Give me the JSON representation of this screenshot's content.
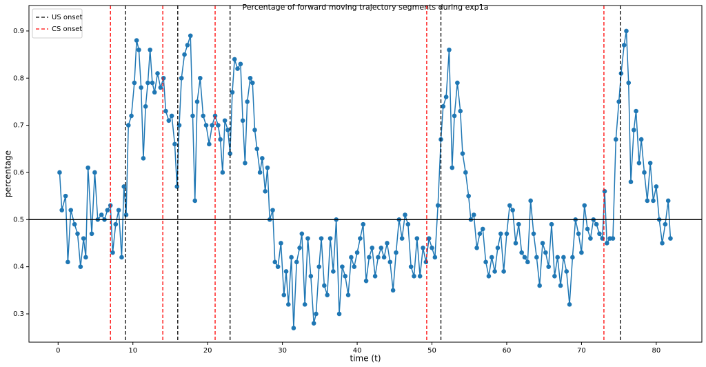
{
  "chart_data": {
    "type": "line",
    "title": "Percentage of forward moving trajectory segments during exp1a",
    "x_label": "time (t)",
    "y_label": "percentage",
    "x": [
      0.2,
      0.5,
      1,
      1.3,
      1.7,
      2.2,
      2.6,
      3,
      3.4,
      3.7,
      4,
      4.5,
      4.9,
      5.3,
      5.8,
      6.2,
      6.6,
      7,
      7.3,
      7.7,
      8.1,
      8.5,
      8.8,
      9.1,
      9.4,
      9.8,
      10.2,
      10.5,
      10.8,
      11.1,
      11.4,
      11.7,
      12,
      12.3,
      12.6,
      12.9,
      13.3,
      13.7,
      14.1,
      14.4,
      14.8,
      15.2,
      15.6,
      15.9,
      16.2,
      16.5,
      16.9,
      17.3,
      17.7,
      18,
      18.3,
      18.6,
      19,
      19.4,
      19.8,
      20.2,
      20.6,
      21,
      21.4,
      21.7,
      22,
      22.3,
      22.7,
      23,
      23.3,
      23.6,
      24,
      24.4,
      24.7,
      25,
      25.3,
      25.7,
      26,
      26.3,
      26.6,
      27,
      27.3,
      27.7,
      28,
      28.3,
      28.7,
      29,
      29.4,
      29.8,
      30.2,
      30.5,
      30.8,
      31.2,
      31.5,
      31.9,
      32.3,
      32.6,
      33,
      33.4,
      33.8,
      34.2,
      34.5,
      34.9,
      35.2,
      35.6,
      36,
      36.4,
      36.8,
      37.2,
      37.6,
      38,
      38.4,
      38.8,
      39.2,
      39.6,
      40,
      40.4,
      40.8,
      41.2,
      41.6,
      42,
      42.4,
      42.8,
      43.2,
      43.6,
      44,
      44.4,
      44.8,
      45.2,
      45.6,
      46,
      46.4,
      46.8,
      47.2,
      47.6,
      48,
      48.4,
      48.8,
      49.2,
      49.6,
      50,
      50.4,
      50.8,
      51.2,
      51.5,
      51.9,
      52.3,
      52.7,
      53,
      53.4,
      53.8,
      54.1,
      54.5,
      54.9,
      55.2,
      55.6,
      56,
      56.4,
      56.8,
      57.2,
      57.6,
      58,
      58.4,
      58.8,
      59.2,
      59.6,
      60,
      60.4,
      60.8,
      61.2,
      61.6,
      62,
      62.4,
      62.8,
      63.2,
      63.6,
      64,
      64.4,
      64.8,
      65.2,
      65.6,
      66,
      66.4,
      66.8,
      67.2,
      67.6,
      68,
      68.4,
      68.8,
      69.2,
      69.6,
      70,
      70.4,
      70.8,
      71.2,
      71.6,
      72,
      72.4,
      72.8,
      73.1,
      73.4,
      73.8,
      74.2,
      74.6,
      75,
      75.3,
      75.7,
      76,
      76.3,
      76.6,
      77,
      77.3,
      77.7,
      78,
      78.4,
      78.8,
      79.2,
      79.6,
      80,
      80.4,
      80.8,
      81.2,
      81.6,
      81.9
    ],
    "series": [
      {
        "name": "percentage",
        "color": "#1f77b4",
        "values": [
          0.6,
          0.52,
          0.55,
          0.41,
          0.52,
          0.49,
          0.47,
          0.4,
          0.46,
          0.42,
          0.61,
          0.47,
          0.6,
          0.5,
          0.51,
          0.5,
          0.52,
          0.53,
          0.43,
          0.49,
          0.52,
          0.42,
          0.57,
          0.51,
          0.7,
          0.72,
          0.79,
          0.88,
          0.86,
          0.78,
          0.63,
          0.74,
          0.79,
          0.86,
          0.79,
          0.77,
          0.81,
          0.78,
          0.8,
          0.73,
          0.71,
          0.72,
          0.66,
          0.57,
          0.7,
          0.8,
          0.85,
          0.87,
          0.89,
          0.72,
          0.54,
          0.75,
          0.8,
          0.72,
          0.7,
          0.66,
          0.7,
          0.72,
          0.7,
          0.67,
          0.6,
          0.71,
          0.69,
          0.64,
          0.77,
          0.84,
          0.82,
          0.83,
          0.71,
          0.62,
          0.75,
          0.8,
          0.79,
          0.69,
          0.65,
          0.6,
          0.63,
          0.56,
          0.61,
          0.5,
          0.52,
          0.41,
          0.4,
          0.45,
          0.34,
          0.39,
          0.32,
          0.42,
          0.27,
          0.41,
          0.44,
          0.47,
          0.32,
          0.46,
          0.38,
          0.28,
          0.3,
          0.4,
          0.46,
          0.36,
          0.34,
          0.46,
          0.39,
          0.5,
          0.3,
          0.4,
          0.38,
          0.34,
          0.42,
          0.4,
          0.43,
          0.46,
          0.49,
          0.37,
          0.42,
          0.44,
          0.38,
          0.42,
          0.44,
          0.42,
          0.45,
          0.41,
          0.35,
          0.43,
          0.5,
          0.46,
          0.51,
          0.49,
          0.4,
          0.38,
          0.46,
          0.38,
          0.44,
          0.41,
          0.46,
          0.44,
          0.42,
          0.53,
          0.67,
          0.74,
          0.76,
          0.86,
          0.61,
          0.72,
          0.79,
          0.73,
          0.64,
          0.6,
          0.55,
          0.5,
          0.51,
          0.44,
          0.47,
          0.48,
          0.41,
          0.38,
          0.42,
          0.39,
          0.44,
          0.47,
          0.39,
          0.47,
          0.53,
          0.52,
          0.45,
          0.49,
          0.43,
          0.42,
          0.41,
          0.54,
          0.47,
          0.42,
          0.36,
          0.45,
          0.43,
          0.4,
          0.49,
          0.38,
          0.42,
          0.36,
          0.42,
          0.39,
          0.32,
          0.42,
          0.5,
          0.47,
          0.43,
          0.53,
          0.48,
          0.46,
          0.5,
          0.49,
          0.47,
          0.46,
          0.56,
          0.45,
          0.46,
          0.46,
          0.67,
          0.75,
          0.81,
          0.87,
          0.9,
          0.79,
          0.58,
          0.69,
          0.73,
          0.62,
          0.67,
          0.6,
          0.54,
          0.62,
          0.54,
          0.57,
          0.5,
          0.45,
          0.49,
          0.54,
          0.46
        ]
      }
    ],
    "events": [
      {
        "name": "US onset",
        "color": "#000000",
        "x": [
          9,
          16,
          23,
          51.2,
          75.2
        ]
      },
      {
        "name": "CS onset",
        "color": "#ff0000",
        "x": [
          7,
          14,
          21,
          49.3,
          73
        ]
      }
    ],
    "hline": 0.5,
    "xlim": [
      -3.9,
      86.1
    ],
    "ylim": [
      0.24,
      0.954
    ],
    "xticks": [
      0,
      10,
      20,
      30,
      40,
      50,
      60,
      70,
      80
    ],
    "yticks": [
      0.3,
      0.4,
      0.5,
      0.6,
      0.7,
      0.8,
      0.9
    ],
    "legend": "upper left"
  }
}
